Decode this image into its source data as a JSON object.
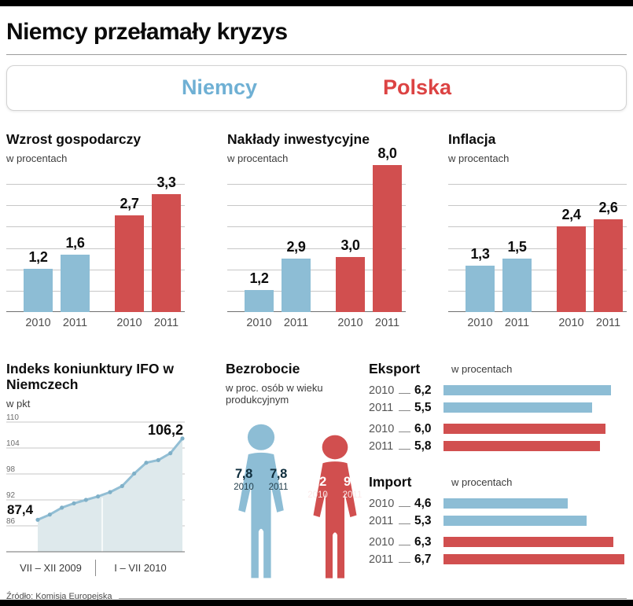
{
  "title": "Niemcy przełamały kryzys",
  "source": "Źródło: Komisja Europejska",
  "legend": {
    "germany": "Niemcy",
    "poland": "Polska"
  },
  "colors": {
    "germany": "#8dbdd5",
    "poland": "#d14f4f",
    "germany_text": "#6fb0d4",
    "poland_text": "#dc4343",
    "ifo_fill": "#dee9ec",
    "ifo_line": "#92bed4",
    "ifo_dot": "#7fb0c8"
  },
  "chart_data": [
    {
      "id": "growth",
      "type": "bar",
      "title": "Wzrost gospodarczy",
      "unit": "w procentach",
      "categories": [
        "2010",
        "2011",
        "2010",
        "2011"
      ],
      "series": [
        {
          "name": "Niemcy",
          "values": [
            1.2,
            1.6
          ]
        },
        {
          "name": "Polska",
          "values": [
            2.7,
            3.3
          ]
        }
      ],
      "value_labels": [
        "1,2",
        "1,6",
        "2,7",
        "3,3"
      ],
      "ymax": 3.6,
      "gridlines": 6
    },
    {
      "id": "investment",
      "type": "bar",
      "title": "Nakłady inwestycyjne",
      "unit": "w procentach",
      "categories": [
        "2010",
        "2011",
        "2010",
        "2011"
      ],
      "series": [
        {
          "name": "Niemcy",
          "values": [
            1.2,
            2.9
          ]
        },
        {
          "name": "Polska",
          "values": [
            3.0,
            8.0
          ]
        }
      ],
      "value_labels": [
        "1,2",
        "2,9",
        "3,0",
        "8,0"
      ],
      "ymax": 7.0,
      "gridlines": 6
    },
    {
      "id": "inflation",
      "type": "bar",
      "title": "Inflacja",
      "unit": "w procentach",
      "categories": [
        "2010",
        "2011",
        "2010",
        "2011"
      ],
      "series": [
        {
          "name": "Niemcy",
          "values": [
            1.3,
            1.5
          ]
        },
        {
          "name": "Polska",
          "values": [
            2.4,
            2.6
          ]
        }
      ],
      "value_labels": [
        "1,3",
        "1,5",
        "2,4",
        "2,6"
      ],
      "ymax": 3.6,
      "gridlines": 6
    },
    {
      "id": "ifo",
      "type": "line",
      "title": "Indeks koniunktury IFO w Niemczech",
      "unit": "w pkt",
      "ymax": 110,
      "ymin": 80,
      "yticks": [
        110,
        104,
        98,
        92,
        86
      ],
      "x_labels": [
        "VII – XII 2009",
        "I – VII 2010"
      ],
      "values": [
        87.4,
        88.6,
        90.2,
        91.2,
        92.0,
        92.8,
        93.8,
        95.2,
        98.1,
        100.6,
        101.2,
        102.8,
        106.2
      ],
      "first_label": "87,4",
      "last_label": "106,2"
    },
    {
      "id": "unemployment",
      "type": "pictogram",
      "title": "Bezrobocie",
      "unit": "w proc. osób w wieku produkcyjnym",
      "germany": {
        "values": [
          "7,8",
          "7,8"
        ],
        "years": [
          "2010",
          "2011"
        ]
      },
      "poland": {
        "values": [
          "9,2",
          "9,4"
        ],
        "years": [
          "2010",
          "2011"
        ]
      }
    },
    {
      "id": "export",
      "type": "hbar",
      "title": "Eksport",
      "unit": "w procentach",
      "xmax": 6.7,
      "rows": [
        {
          "year": "2010",
          "series": "germany",
          "value": 6.2,
          "label": "6,2"
        },
        {
          "year": "2011",
          "series": "germany",
          "value": 5.5,
          "label": "5,5"
        },
        {
          "year": "2010",
          "series": "poland",
          "value": 6.0,
          "label": "6,0"
        },
        {
          "year": "2011",
          "series": "poland",
          "value": 5.8,
          "label": "5,8"
        }
      ]
    },
    {
      "id": "import",
      "type": "hbar",
      "title": "Import",
      "unit": "w procentach",
      "xmax": 6.7,
      "rows": [
        {
          "year": "2010",
          "series": "germany",
          "value": 4.6,
          "label": "4,6"
        },
        {
          "year": "2011",
          "series": "germany",
          "value": 5.3,
          "label": "5,3"
        },
        {
          "year": "2010",
          "series": "poland",
          "value": 6.3,
          "label": "6,3"
        },
        {
          "year": "2011",
          "series": "poland",
          "value": 6.7,
          "label": "6,7"
        }
      ]
    }
  ]
}
